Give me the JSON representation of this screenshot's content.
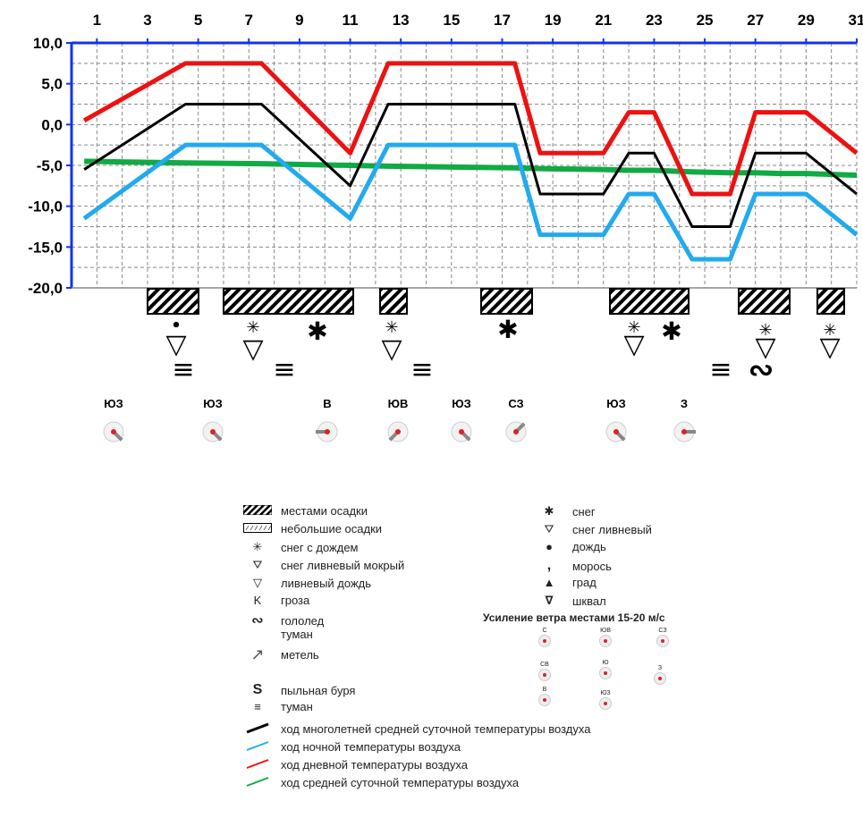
{
  "chart_data": {
    "type": "line",
    "x_ticks": [
      "1",
      "3",
      "5",
      "7",
      "9",
      "11",
      "13",
      "15",
      "17",
      "19",
      "21",
      "23",
      "25",
      "27",
      "29",
      "31"
    ],
    "y_ticks": [
      "10,0",
      "5,0",
      "0,0",
      "-5,0",
      "-10,0",
      "-15,0",
      "-20,0"
    ],
    "ylim": [
      -20,
      10
    ],
    "xlim": [
      0,
      31
    ],
    "grid": true,
    "x": [
      0.5,
      4.5,
      7.5,
      11,
      12.5,
      17.5,
      18.5,
      21,
      22,
      23,
      24.5,
      26,
      27,
      28,
      29,
      31
    ],
    "series": [
      {
        "color": "#ee1111",
        "values": [
          0.5,
          7.5,
          7.5,
          -3.5,
          7.5,
          7.5,
          -3.5,
          -3.5,
          1.5,
          1.5,
          -8.5,
          -8.5,
          1.5,
          1.5,
          1.5,
          -3.5
        ]
      },
      {
        "color": "#000000",
        "values": [
          -5.5,
          2.5,
          2.5,
          -7.5,
          2.5,
          2.5,
          -8.5,
          -8.5,
          -3.5,
          -3.5,
          -12.5,
          -12.5,
          -3.5,
          -3.5,
          -3.5,
          -8.5
        ]
      },
      {
        "color": "#22aaee",
        "values": [
          -11.5,
          -2.5,
          -2.5,
          -11.5,
          -2.5,
          -2.5,
          -13.5,
          -13.5,
          -8.5,
          -8.5,
          -16.5,
          -16.5,
          -8.5,
          -8.5,
          -8.5,
          -13.5
        ]
      },
      {
        "color": "#11aa44",
        "values": [
          -4.5,
          -4.7,
          -4.8,
          -5.0,
          -5.1,
          -5.3,
          -5.4,
          -5.5,
          -5.6,
          -5.6,
          -5.8,
          -5.9,
          -5.9,
          -6.0,
          -6.0,
          -6.2
        ]
      }
    ]
  },
  "wind_labels": [
    "ЮЗ",
    "ЮЗ",
    "В",
    "ЮВ",
    "ЮЗ",
    "СЗ",
    "ЮЗ",
    "З"
  ],
  "legend": {
    "left": [
      "местами осадки",
      "небольшие осадки",
      "снег с дождем",
      "снег ливневый мокрый",
      "ливневый дождь",
      "гроза",
      "гололед",
      "туман",
      "метель",
      "пыльная буря",
      "туман"
    ],
    "right": [
      "снег",
      "снег ливневый",
      "дождь",
      "морось",
      "град",
      "шквал"
    ],
    "wind_title": "Усиление ветра местами 15-20 м/с",
    "wind_dirs": [
      "С",
      "ЮВ",
      "СЗ",
      "СВ",
      "Ю",
      "З",
      "В",
      "ЮЗ"
    ],
    "lines": [
      "ход многолетней средней суточной температуры воздуха",
      "ход ночной температуры воздуха",
      "ход дневной температуры воздуха",
      "ход средней суточной температуры воздуха"
    ]
  },
  "colors": {
    "axis": "#1133ee",
    "grid": "#888888",
    "red": "#ee1111",
    "blue": "#22aaee",
    "green": "#11aa44",
    "black": "#000000"
  }
}
